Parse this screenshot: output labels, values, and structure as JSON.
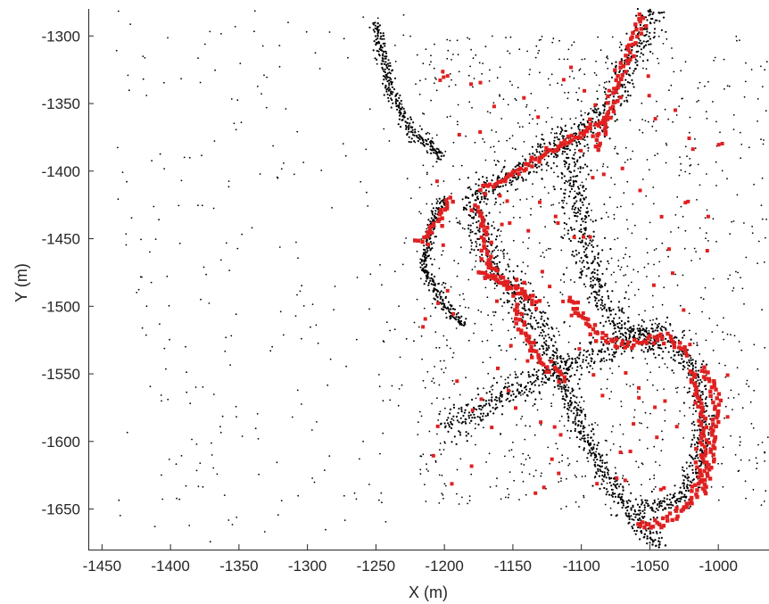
{
  "chart_data": {
    "type": "scatter",
    "title": "",
    "xlabel": "X (m)",
    "ylabel": "Y (m)",
    "xlim": [
      -1460,
      -963
    ],
    "ylim": [
      -1680,
      -1280
    ],
    "x_ticks": [
      -1450,
      -1400,
      -1350,
      -1300,
      -1250,
      -1200,
      -1150,
      -1100,
      -1050,
      -1000
    ],
    "y_ticks": [
      -1300,
      -1350,
      -1400,
      -1450,
      -1500,
      -1550,
      -1600,
      -1650
    ],
    "x_tick_labels": [
      "-1450",
      "-1400",
      "-1350",
      "-1300",
      "-1250",
      "-1200",
      "-1150",
      "-1100",
      "-1050",
      "-1000"
    ],
    "y_tick_labels": [
      "-1300",
      "-1350",
      "-1400",
      "-1450",
      "-1500",
      "-1550",
      "-1600",
      "-1650"
    ],
    "grid": false,
    "box": "left-bottom axes only",
    "series": [
      {
        "color": "#000000",
        "marker": "point",
        "structures": [
          {
            "path": [
              [
                -1045,
                -1280
              ],
              [
                -1070,
                -1330
              ],
              [
                -1085,
                -1360
              ],
              [
                -1115,
                -1380
              ],
              [
                -1145,
                -1398
              ],
              [
                -1180,
                -1418
              ]
            ],
            "width": 10
          },
          {
            "path": [
              [
                -1180,
                -1418
              ],
              [
                -1170,
                -1460
              ],
              [
                -1150,
                -1490
              ],
              [
                -1130,
                -1520
              ],
              [
                -1115,
                -1548
              ]
            ],
            "width": 11
          },
          {
            "path": [
              [
                -1110,
                -1380
              ],
              [
                -1100,
                -1440
              ],
              [
                -1090,
                -1480
              ],
              [
                -1075,
                -1515
              ],
              [
                -1040,
                -1525
              ]
            ],
            "width": 11
          },
          {
            "path": [
              [
                -1200,
                -1590
              ],
              [
                -1155,
                -1565
              ],
              [
                -1120,
                -1550
              ],
              [
                -1085,
                -1533
              ],
              [
                -1050,
                -1520
              ],
              [
                -1020,
                -1540
              ]
            ],
            "width": 10
          },
          {
            "path": [
              [
                -1115,
                -1548
              ],
              [
                -1105,
                -1580
              ],
              [
                -1085,
                -1620
              ],
              [
                -1060,
                -1660
              ],
              [
                -1040,
                -1680
              ]
            ],
            "width": 7
          },
          {
            "path": [
              [
                -1020,
                -1540
              ],
              [
                -1010,
                -1580
              ],
              [
                -1015,
                -1620
              ],
              [
                -1030,
                -1645
              ],
              [
                -1060,
                -1650
              ]
            ],
            "width": 7
          },
          {
            "path": [
              [
                -1200,
                -1420
              ],
              [
                -1210,
                -1440
              ],
              [
                -1215,
                -1470
              ],
              [
                -1200,
                -1500
              ],
              [
                -1185,
                -1515
              ]
            ],
            "width": 4
          },
          {
            "path": [
              [
                -1250,
                -1290
              ],
              [
                -1240,
                -1340
              ],
              [
                -1225,
                -1370
              ],
              [
                -1200,
                -1390
              ]
            ],
            "width": 4
          }
        ],
        "scatter_regions": [
          {
            "x": [
              -1440,
              -1220
            ],
            "y": [
              -1680,
              -1280
            ],
            "density": "sparse"
          },
          {
            "x": [
              -1220,
              -1040
            ],
            "y": [
              -1650,
              -1300
            ],
            "density": "medium"
          },
          {
            "x": [
              -1040,
              -963
            ],
            "y": [
              -1650,
              -1300
            ],
            "density": "sparse"
          }
        ]
      },
      {
        "color": "#e02020",
        "marker": "square",
        "structures": [
          {
            "path": [
              [
                -1055,
                -1285
              ],
              [
                -1072,
                -1330
              ],
              [
                -1080,
                -1360
              ],
              [
                -1090,
                -1385
              ]
            ],
            "width": 2
          },
          {
            "path": [
              [
                -1080,
                -1360
              ],
              [
                -1110,
                -1378
              ],
              [
                -1140,
                -1396
              ],
              [
                -1175,
                -1415
              ]
            ],
            "width": 2
          },
          {
            "path": [
              [
                -1175,
                -1425
              ],
              [
                -1170,
                -1460
              ],
              [
                -1160,
                -1480
              ],
              [
                -1140,
                -1495
              ]
            ],
            "width": 2
          },
          {
            "path": [
              [
                -1175,
                -1475
              ],
              [
                -1160,
                -1480
              ],
              [
                -1145,
                -1487
              ],
              [
                -1130,
                -1498
              ]
            ],
            "width": 2
          },
          {
            "path": [
              [
                -1110,
                -1495
              ],
              [
                -1090,
                -1520
              ],
              [
                -1070,
                -1530
              ],
              [
                -1040,
                -1522
              ],
              [
                -1020,
                -1535
              ]
            ],
            "width": 2
          },
          {
            "path": [
              [
                -1020,
                -1548
              ],
              [
                -1012,
                -1580
              ],
              [
                -1012,
                -1615
              ],
              [
                -1020,
                -1645
              ],
              [
                -1040,
                -1660
              ],
              [
                -1060,
                -1660
              ]
            ],
            "width": 2
          },
          {
            "path": [
              [
                -1010,
                -1545
              ],
              [
                -1002,
                -1560
              ],
              [
                -1003,
                -1600
              ],
              [
                -1010,
                -1640
              ]
            ],
            "width": 2
          },
          {
            "path": [
              [
                -1150,
                -1500
              ],
              [
                -1140,
                -1525
              ],
              [
                -1125,
                -1545
              ],
              [
                -1110,
                -1555
              ]
            ],
            "width": 2
          },
          {
            "path": [
              [
                -1195,
                -1420
              ],
              [
                -1210,
                -1445
              ],
              [
                -1220,
                -1455
              ]
            ],
            "width": 2
          }
        ]
      }
    ]
  }
}
